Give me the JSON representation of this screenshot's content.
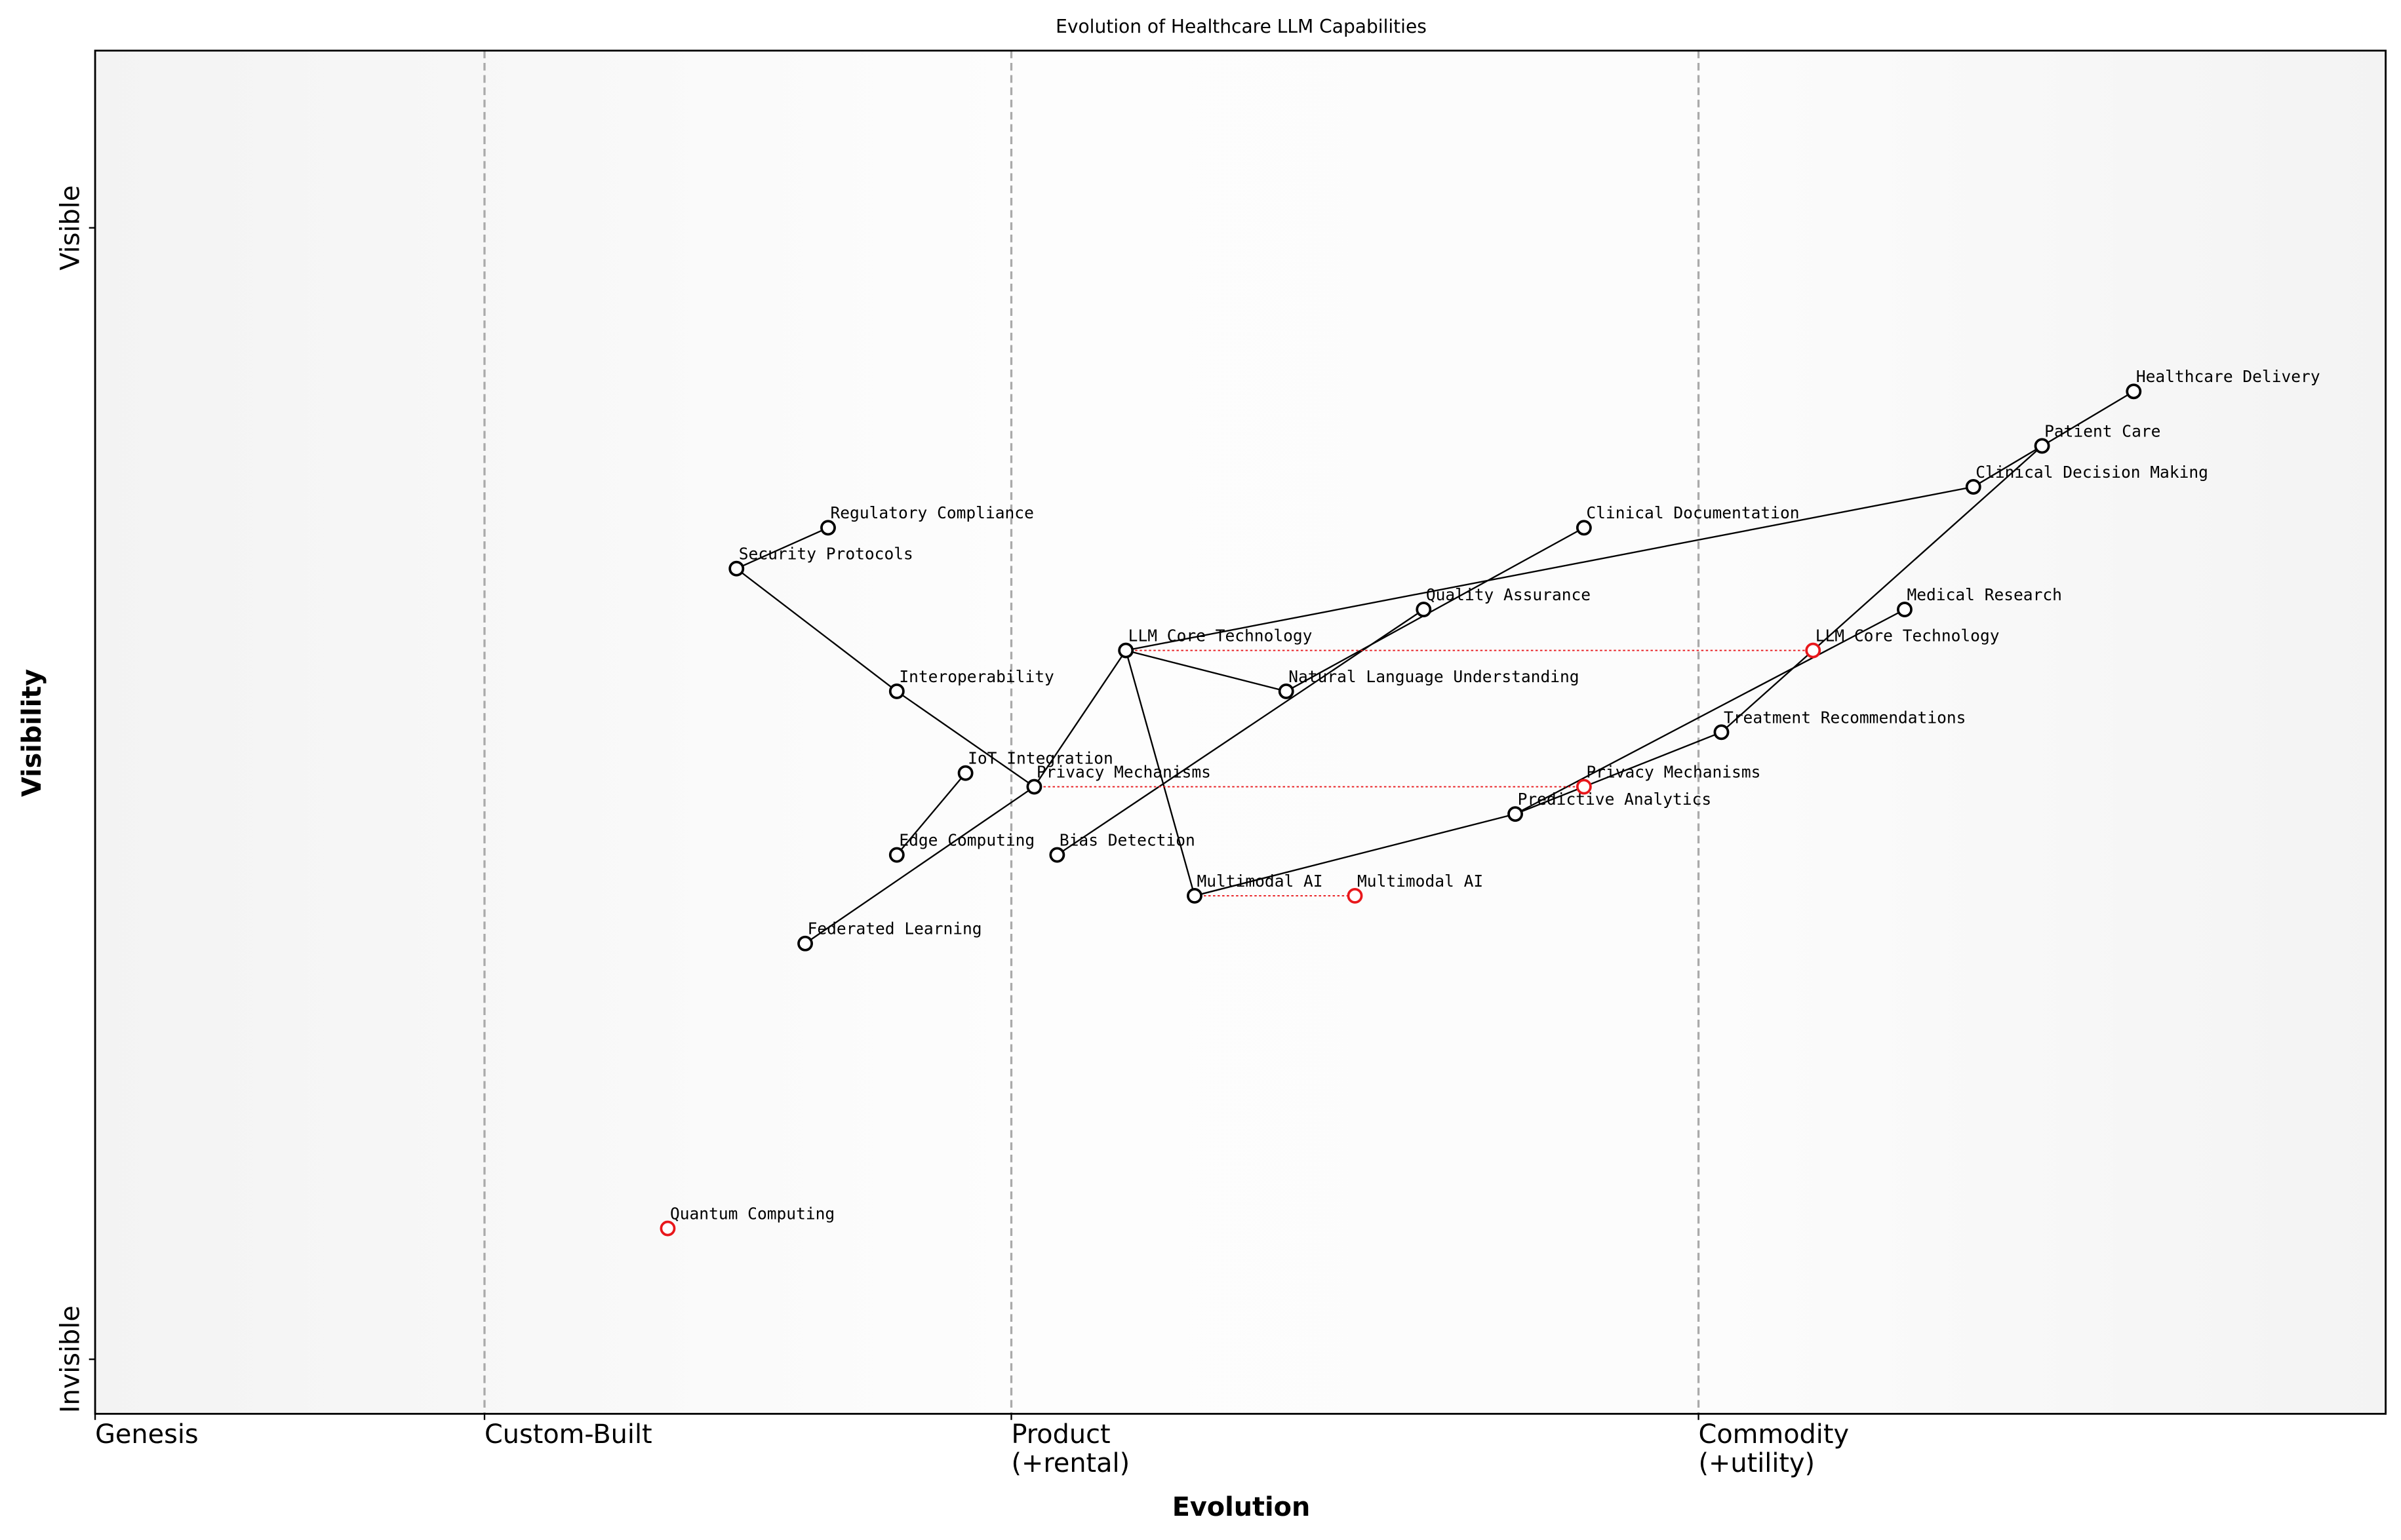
{
  "chart_data": {
    "type": "wardley",
    "title": "Evolution of Healthcare LLM Capabilities",
    "xlabel": "Evolution",
    "ylabel": "Visibility",
    "xlim": [
      0,
      1
    ],
    "ylim": [
      0,
      1
    ],
    "xticks": [
      {
        "value": 0,
        "label": "Genesis"
      },
      {
        "value": 0.17,
        "label": "Custom-Built"
      },
      {
        "value": 0.4,
        "label": "Product\n(+rental)"
      },
      {
        "value": 0.7,
        "label": "Commodity\n(+utility)"
      }
    ],
    "yticks": [
      {
        "value": 0.04,
        "label": "Invisible"
      },
      {
        "value": 0.87,
        "label": "Visible"
      }
    ],
    "component_color": "#000000",
    "evolved_color": "#e8171b",
    "components": [
      {
        "name": "Healthcare Delivery",
        "evolution": 0.89,
        "visibility": 0.75
      },
      {
        "name": "Patient Care",
        "evolution": 0.85,
        "visibility": 0.71
      },
      {
        "name": "Clinical Decision Making",
        "evolution": 0.82,
        "visibility": 0.68
      },
      {
        "name": "Clinical Documentation",
        "evolution": 0.65,
        "visibility": 0.65
      },
      {
        "name": "Regulatory Compliance",
        "evolution": 0.32,
        "visibility": 0.65
      },
      {
        "name": "Security Protocols",
        "evolution": 0.28,
        "visibility": 0.62
      },
      {
        "name": "Quality Assurance",
        "evolution": 0.58,
        "visibility": 0.59
      },
      {
        "name": "Medical Research",
        "evolution": 0.79,
        "visibility": 0.59
      },
      {
        "name": "LLM Core Technology",
        "evolution": 0.45,
        "visibility": 0.56
      },
      {
        "name": "Interoperability",
        "evolution": 0.35,
        "visibility": 0.53
      },
      {
        "name": "Natural Language Understanding",
        "evolution": 0.52,
        "visibility": 0.53
      },
      {
        "name": "Treatment Recommendations",
        "evolution": 0.71,
        "visibility": 0.5
      },
      {
        "name": "IoT Integration",
        "evolution": 0.38,
        "visibility": 0.47
      },
      {
        "name": "Privacy Mechanisms",
        "evolution": 0.41,
        "visibility": 0.46
      },
      {
        "name": "Predictive Analytics",
        "evolution": 0.62,
        "visibility": 0.44
      },
      {
        "name": "Edge Computing",
        "evolution": 0.35,
        "visibility": 0.41
      },
      {
        "name": "Bias Detection",
        "evolution": 0.42,
        "visibility": 0.41
      },
      {
        "name": "Multimodal AI",
        "evolution": 0.48,
        "visibility": 0.38
      },
      {
        "name": "Federated Learning",
        "evolution": 0.31,
        "visibility": 0.345
      }
    ],
    "evolved": [
      {
        "name": "LLM Core Technology",
        "evolution": 0.75,
        "visibility": 0.56
      },
      {
        "name": "Privacy Mechanisms",
        "evolution": 0.65,
        "visibility": 0.46
      },
      {
        "name": "Multimodal AI",
        "evolution": 0.55,
        "visibility": 0.38
      },
      {
        "name": "Quantum Computing",
        "evolution": 0.25,
        "visibility": 0.136
      }
    ],
    "links": [
      [
        "Healthcare Delivery",
        "Patient Care"
      ],
      [
        "Patient Care",
        "Clinical Decision Making"
      ],
      [
        "Patient Care",
        "Treatment Recommendations"
      ],
      [
        "Clinical Decision Making",
        "LLM Core Technology"
      ],
      [
        "Clinical Documentation",
        "Natural Language Understanding"
      ],
      [
        "Quality Assurance",
        "Bias Detection"
      ],
      [
        "LLM Core Technology",
        "Natural Language Understanding"
      ],
      [
        "LLM Core Technology",
        "Multimodal AI"
      ],
      [
        "LLM Core Technology",
        "Privacy Mechanisms"
      ],
      [
        "Security Protocols",
        "Regulatory Compliance"
      ],
      [
        "Security Protocols",
        "Interoperability"
      ],
      [
        "Interoperability",
        "Privacy Mechanisms"
      ],
      [
        "IoT Integration",
        "Edge Computing"
      ],
      [
        "Federated Learning",
        "Privacy Mechanisms"
      ],
      [
        "Multimodal AI",
        "Predictive Analytics"
      ],
      [
        "Predictive Analytics",
        "Treatment Recommendations"
      ],
      [
        "Predictive Analytics",
        "Medical Research"
      ]
    ]
  }
}
